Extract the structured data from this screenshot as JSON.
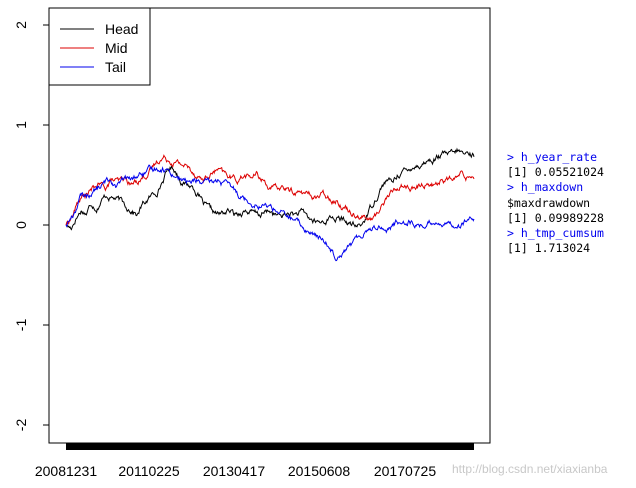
{
  "chart_data": {
    "type": "line",
    "title": "",
    "xlabel": "",
    "ylabel": "",
    "ylim": [
      -2,
      2
    ],
    "yticks": [
      -2,
      -1,
      0,
      1,
      2
    ],
    "x_tick_labels": [
      "20081231",
      "20110225",
      "20130417",
      "20150608",
      "20170725"
    ],
    "legend_position": "top-left",
    "grid": false,
    "series": [
      {
        "name": "Head",
        "color": "#000000",
        "values": [
          0.0,
          -0.03,
          0.08,
          0.15,
          0.12,
          0.22,
          0.18,
          0.25,
          0.3,
          0.28,
          0.26,
          0.22,
          0.18,
          0.15,
          0.1,
          0.2,
          0.25,
          0.3,
          0.35,
          0.45,
          0.55,
          0.58,
          0.5,
          0.42,
          0.4,
          0.38,
          0.3,
          0.2,
          0.15,
          0.12,
          0.1,
          0.12,
          0.14,
          0.1,
          0.12,
          0.15,
          0.13,
          0.11,
          0.1,
          0.12,
          0.14,
          0.1,
          0.08,
          0.1,
          0.12,
          0.1,
          0.12,
          0.1,
          0.05,
          0.03,
          0.02,
          0.05,
          0.08,
          0.06,
          0.05,
          0.03,
          0.0,
          -0.02,
          0.0,
          0.1,
          0.2,
          0.3,
          0.4,
          0.45,
          0.42,
          0.5,
          0.55,
          0.52,
          0.6,
          0.6,
          0.62,
          0.65,
          0.65,
          0.68,
          0.7,
          0.7,
          0.7,
          0.74,
          0.7,
          0.72,
          0.7
        ]
      },
      {
        "name": "Mid",
        "color": "#dd0000",
        "values": [
          0.0,
          0.1,
          0.25,
          0.3,
          0.35,
          0.4,
          0.38,
          0.45,
          0.42,
          0.45,
          0.4,
          0.45,
          0.5,
          0.55,
          0.65,
          0.68,
          0.65,
          0.62,
          0.6,
          0.55,
          0.5,
          0.45,
          0.5,
          0.55,
          0.5,
          0.48,
          0.45,
          0.5,
          0.48,
          0.5,
          0.45,
          0.38,
          0.35,
          0.38,
          0.34,
          0.33,
          0.32,
          0.3,
          0.28,
          0.3,
          0.28,
          0.26,
          0.2,
          0.15,
          0.12,
          0.1,
          0.05,
          0.08,
          0.2,
          0.3,
          0.35,
          0.4,
          0.38,
          0.35,
          0.4,
          0.42,
          0.4,
          0.45,
          0.45,
          0.45,
          0.5,
          0.48,
          0.5
        ]
      },
      {
        "name": "Tail",
        "color": "#0000ee",
        "values": [
          0.0,
          0.1,
          0.28,
          0.3,
          0.35,
          0.4,
          0.45,
          0.4,
          0.45,
          0.45,
          0.5,
          0.52,
          0.55,
          0.58,
          0.55,
          0.5,
          0.45,
          0.42,
          0.45,
          0.4,
          0.42,
          0.45,
          0.4,
          0.35,
          0.3,
          0.25,
          0.22,
          0.2,
          0.18,
          0.15,
          0.1,
          0.05,
          0.0,
          -0.05,
          -0.1,
          -0.15,
          -0.2,
          -0.3,
          -0.25,
          -0.2,
          -0.15,
          -0.05,
          -0.02,
          0.0,
          -0.05,
          0.0,
          0.05,
          0.05,
          0.0,
          0.0,
          0.02,
          0.05,
          0.0,
          0.02,
          0.0,
          0.05,
          0.03
        ]
      }
    ]
  },
  "console": {
    "cmd1": "> h_year_rate",
    "out1": "[1] 0.05521024",
    "cmd2": "> h_maxdown",
    "out2": "$maxdrawdown",
    "out3": "[1] 0.09989228",
    "cmd3": "> h_tmp_cumsum",
    "out4": "[1] 1.713024"
  },
  "watermark": "http://blog.csdn.net/xiaxianba"
}
